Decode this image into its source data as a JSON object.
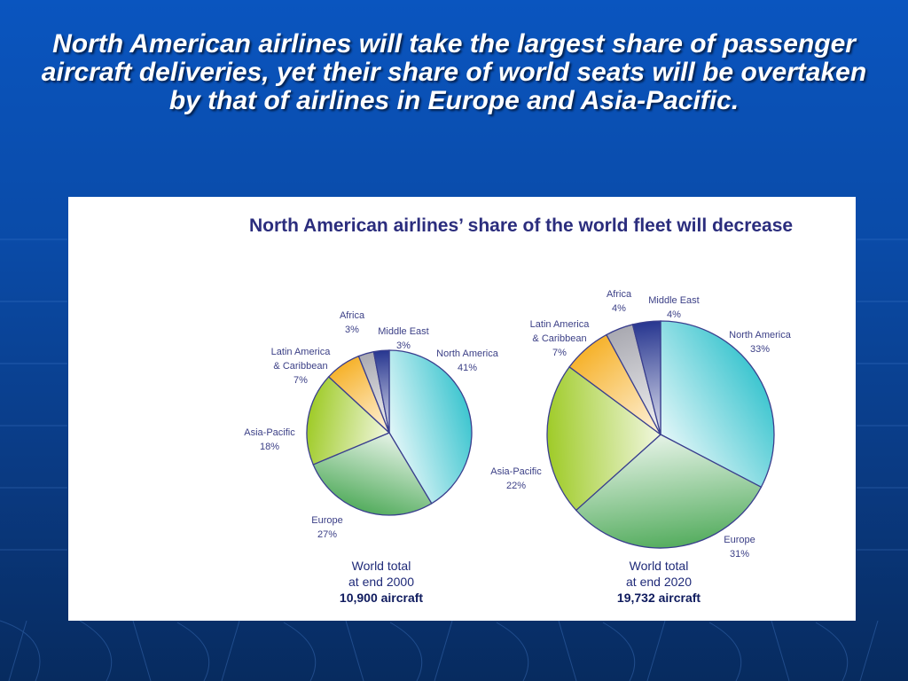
{
  "slide": {
    "title": "North American airlines will take the largest share of passenger aircraft deliveries, yet their share of world seats will be overtaken by that of airlines in Europe and Asia-Pacific."
  },
  "chart_heading": "North American airlines’ share of the world fleet will decrease",
  "chart_data": [
    {
      "type": "pie",
      "title": "",
      "total_lines": [
        "World total",
        "at end 2000",
        "10,900 aircraft"
      ],
      "slices": [
        {
          "label": "North America",
          "value": 41,
          "value_label": "41%",
          "color": "#3fc6d0"
        },
        {
          "label": "Europe",
          "value": 27,
          "value_label": "27%",
          "color": "#55ad5f"
        },
        {
          "label": "Asia-Pacific",
          "value": 18,
          "value_label": "18%",
          "color": "#9fcb28"
        },
        {
          "label": "Latin America & Caribbean",
          "value": 7,
          "value_label": "7%",
          "color": "#f6b22b"
        },
        {
          "label": "Africa",
          "value": 3,
          "value_label": "3%",
          "color": "#a9a9b1"
        },
        {
          "label": "Middle East",
          "value": 3,
          "value_label": "3%",
          "color": "#273690"
        }
      ]
    },
    {
      "type": "pie",
      "title": "",
      "total_lines": [
        "World total",
        "at end 2020",
        "19,732 aircraft"
      ],
      "slices": [
        {
          "label": "North America",
          "value": 33,
          "value_label": "33%",
          "color": "#3fc6d0"
        },
        {
          "label": "Europe",
          "value": 31,
          "value_label": "31%",
          "color": "#55ad5f"
        },
        {
          "label": "Asia-Pacific",
          "value": 22,
          "value_label": "22%",
          "color": "#9fcb28"
        },
        {
          "label": "Latin America & Caribbean",
          "value": 7,
          "value_label": "7%",
          "color": "#f6b22b"
        },
        {
          "label": "Africa",
          "value": 4,
          "value_label": "4%",
          "color": "#a9a9b1"
        },
        {
          "label": "Middle East",
          "value": 4,
          "value_label": "4%",
          "color": "#273690"
        }
      ]
    }
  ]
}
